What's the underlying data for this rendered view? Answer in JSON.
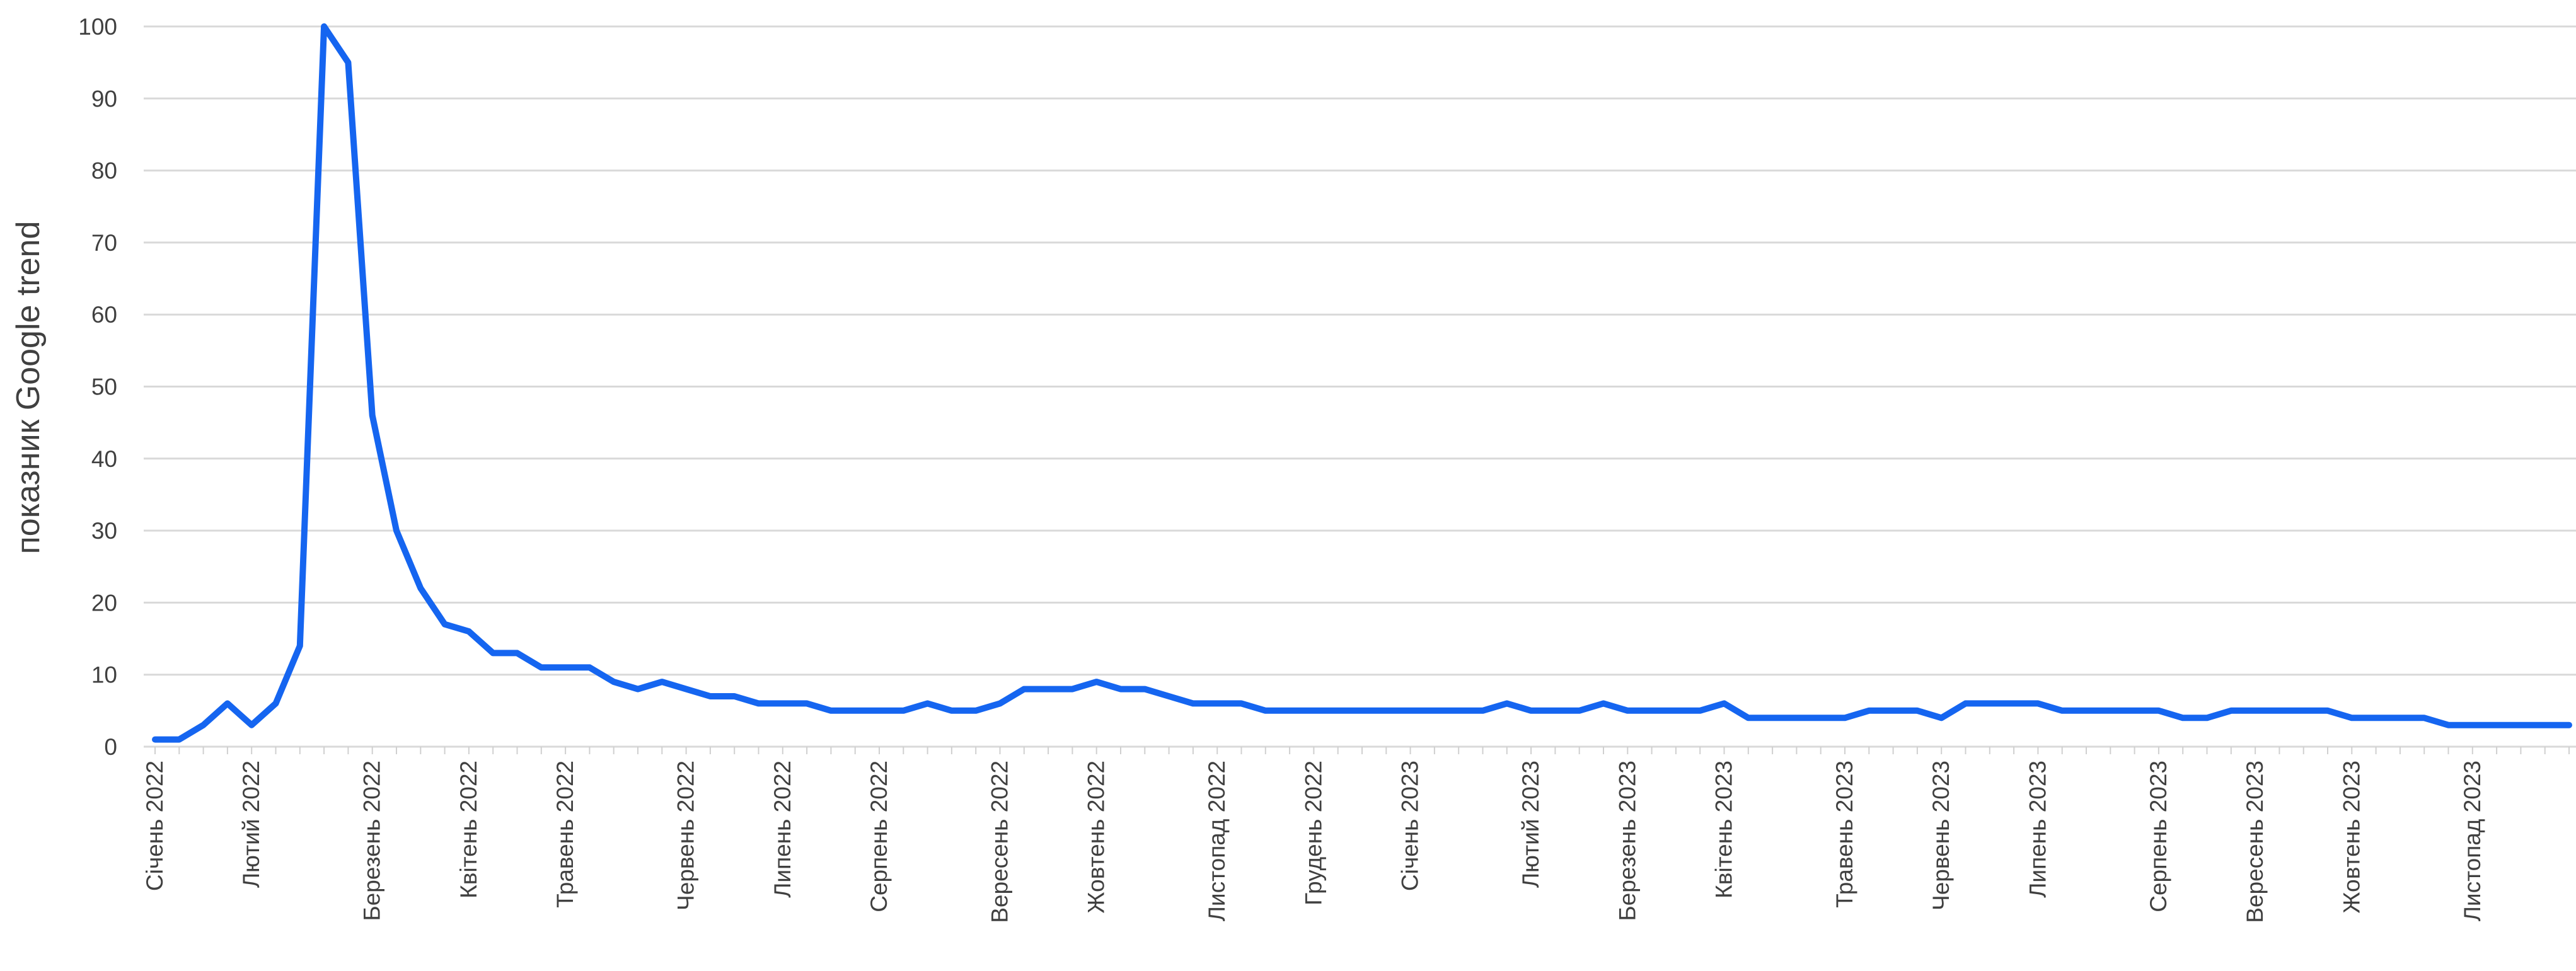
{
  "chart_data": {
    "type": "line",
    "title": "",
    "xlabel": "",
    "ylabel": "показник Google trend",
    "ylim": [
      0,
      100
    ],
    "yticks": [
      0,
      10,
      20,
      30,
      40,
      50,
      60,
      70,
      80,
      90,
      100
    ],
    "grid": true,
    "line_color": "#1565f0",
    "x_tick_labels": [
      "Січень 2022",
      "Лютий 2022",
      "Березень 2022",
      "Квітень 2022",
      "Травень 2022",
      "Червень 2022",
      "Липень 2022",
      "Серпень 2022",
      "Вересень 2022",
      "Жовтень 2022",
      "Листопад 2022",
      "Грудень 2022",
      "Січень 2023",
      "Лютий 2023",
      "Березень 2023",
      "Квітень 2023",
      "Травень 2023",
      "Червень 2023",
      "Липень 2023",
      "Серпень 2023",
      "Вересень 2023",
      "Жовтень 2023",
      "Листопад 2023"
    ],
    "series": [
      {
        "values": [
          1,
          1,
          3,
          6,
          3,
          6,
          14,
          100,
          95,
          46,
          30,
          22,
          17,
          16,
          13,
          13,
          11,
          11,
          11,
          9,
          8,
          9,
          8,
          7,
          7,
          6,
          6,
          6,
          5,
          5,
          5,
          5,
          6,
          5,
          5,
          6,
          8,
          8,
          8,
          9,
          8,
          8,
          7,
          6,
          6,
          6,
          5,
          5,
          5,
          5,
          5,
          5,
          5,
          5,
          5,
          5,
          6,
          5,
          5,
          5,
          6,
          5,
          5,
          5,
          5,
          6,
          4,
          4,
          4,
          4,
          4,
          5,
          5,
          5,
          4,
          6,
          6,
          6,
          6,
          5,
          5,
          5,
          5,
          5,
          4,
          4,
          5,
          5,
          5,
          5,
          5,
          4,
          4,
          4,
          4,
          3,
          3,
          3,
          3,
          3,
          3
        ]
      }
    ]
  }
}
